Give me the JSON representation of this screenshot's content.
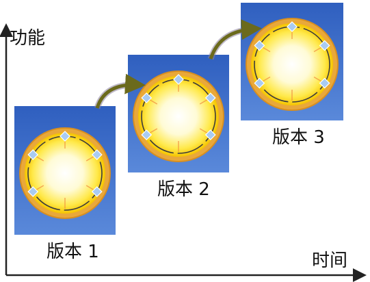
{
  "axes": {
    "y_label": "功能",
    "x_label": "时间"
  },
  "versions": [
    {
      "label": "版本 1"
    },
    {
      "label": "版本 2"
    },
    {
      "label": "版本 3"
    }
  ],
  "colors": {
    "panel_bg": "#3f6fc9",
    "ring": "#e9a83a",
    "ring_inner": "#ffe94a",
    "glow": "#ffffff",
    "node": "#a9cbf2",
    "arrow": "#6b6a1c",
    "axis": "#222222"
  }
}
